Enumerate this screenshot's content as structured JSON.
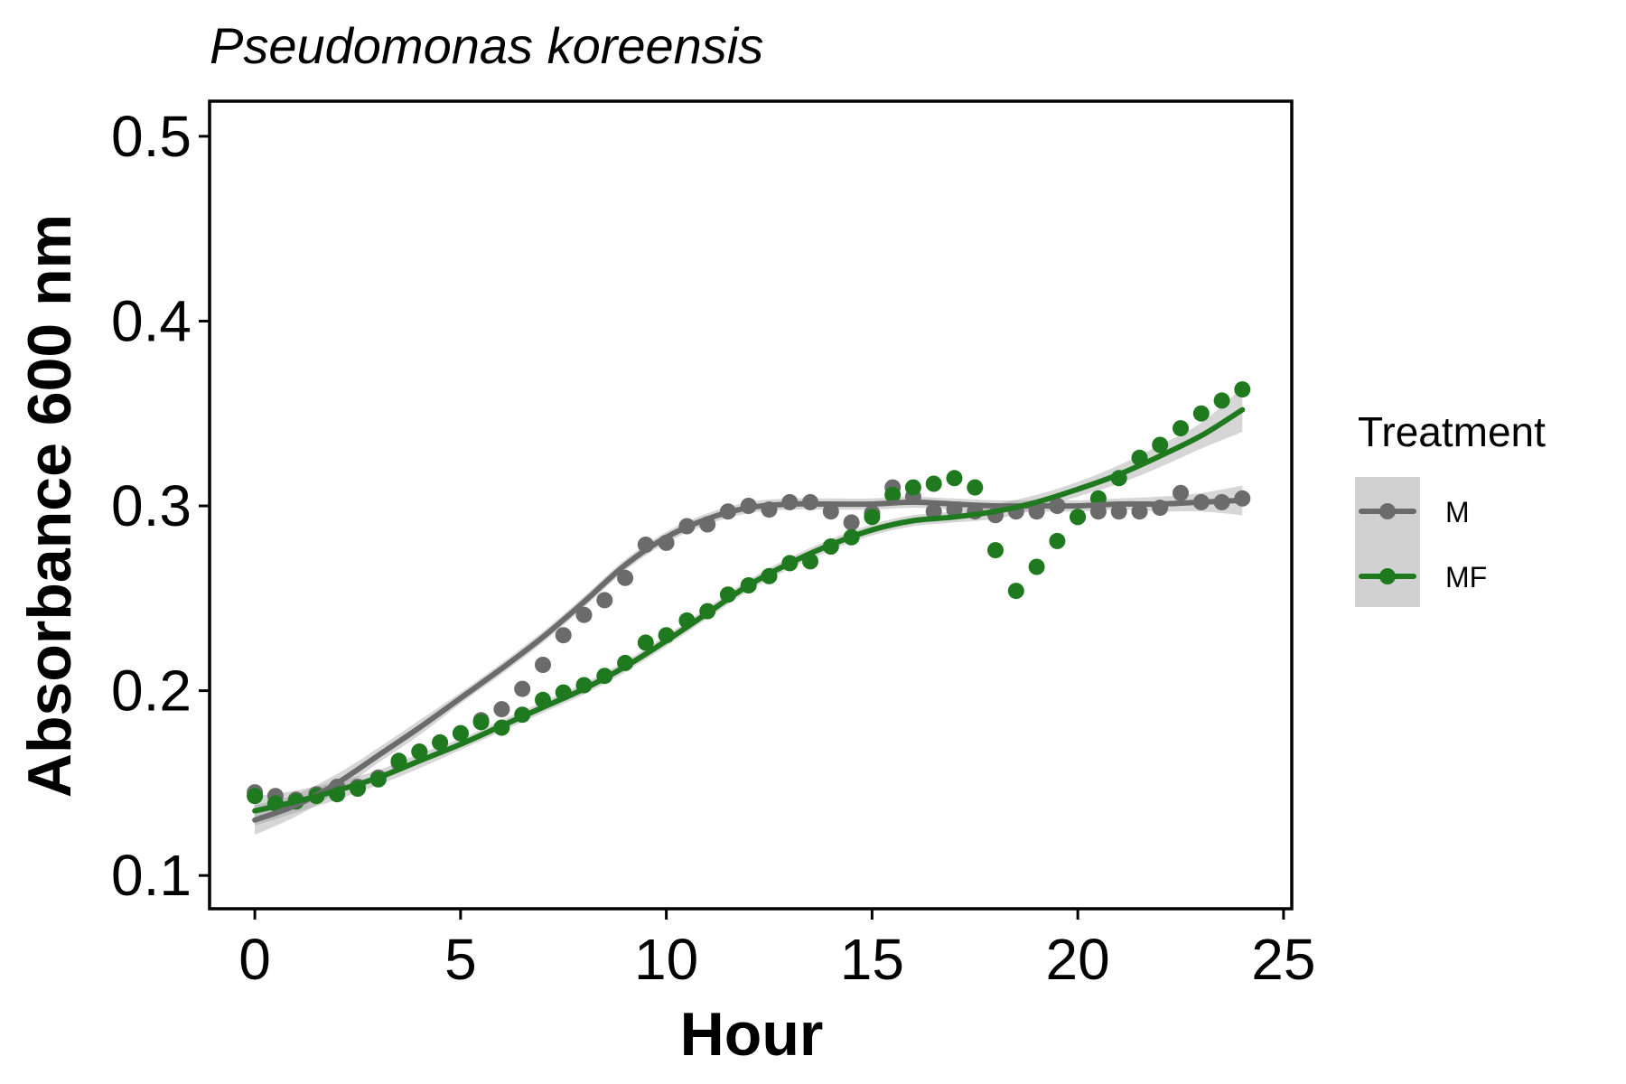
{
  "chart_data": {
    "type": "scatter",
    "title": "Pseudomonas koreensis",
    "xlabel": "Hour",
    "ylabel": "Absorbance 600 nm",
    "xlim": [
      -1.1,
      25.2
    ],
    "ylim": [
      0.082,
      0.519
    ],
    "x_ticks": [
      0,
      5,
      10,
      15,
      20,
      25
    ],
    "x_tick_labels": [
      "0",
      "5",
      "10",
      "15",
      "20",
      "25"
    ],
    "y_ticks": [
      0.1,
      0.2,
      0.3,
      0.4,
      0.5
    ],
    "y_tick_labels": [
      "0.1",
      "0.2",
      "0.3",
      "0.4",
      "0.5"
    ],
    "grid": false,
    "legend": {
      "title": "Treatment",
      "placement": "right"
    },
    "series": [
      {
        "name": "M",
        "color": "#6b6b6b",
        "points": [
          [
            0,
            0.145
          ],
          [
            0.5,
            0.143
          ],
          [
            1,
            0.141
          ],
          [
            1.5,
            0.144
          ],
          [
            2,
            0.148
          ],
          [
            2.5,
            0.148
          ],
          [
            3,
            0.153
          ],
          [
            3.5,
            0.161
          ],
          [
            4,
            0.167
          ],
          [
            4.5,
            0.172
          ],
          [
            5,
            0.177
          ],
          [
            5.5,
            0.184
          ],
          [
            6,
            0.19
          ],
          [
            6.5,
            0.201
          ],
          [
            7,
            0.214
          ],
          [
            7.5,
            0.23
          ],
          [
            8,
            0.241
          ],
          [
            8.5,
            0.249
          ],
          [
            9,
            0.261
          ],
          [
            9.5,
            0.279
          ],
          [
            10,
            0.28
          ],
          [
            10.5,
            0.289
          ],
          [
            11,
            0.29
          ],
          [
            11.5,
            0.297
          ],
          [
            12,
            0.3
          ],
          [
            12.5,
            0.298
          ],
          [
            13,
            0.302
          ],
          [
            13.5,
            0.302
          ],
          [
            14,
            0.297
          ],
          [
            14.5,
            0.291
          ],
          [
            15,
            0.296
          ],
          [
            15.5,
            0.31
          ],
          [
            16,
            0.305
          ],
          [
            16.5,
            0.297
          ],
          [
            17,
            0.298
          ],
          [
            17.5,
            0.297
          ],
          [
            18,
            0.295
          ],
          [
            18.5,
            0.297
          ],
          [
            19,
            0.297
          ],
          [
            19.5,
            0.3
          ],
          [
            20,
            0.294
          ],
          [
            20.5,
            0.297
          ],
          [
            21,
            0.297
          ],
          [
            21.5,
            0.297
          ],
          [
            22,
            0.299
          ],
          [
            22.5,
            0.307
          ],
          [
            23,
            0.302
          ],
          [
            23.5,
            0.302
          ],
          [
            24,
            0.304
          ]
        ],
        "trend": [
          [
            0,
            0.13
          ],
          [
            1,
            0.138
          ],
          [
            2,
            0.15
          ],
          [
            3,
            0.165
          ],
          [
            4,
            0.18
          ],
          [
            5,
            0.196
          ],
          [
            6,
            0.212
          ],
          [
            7,
            0.229
          ],
          [
            8,
            0.248
          ],
          [
            9,
            0.268
          ],
          [
            10,
            0.283
          ],
          [
            11,
            0.293
          ],
          [
            12,
            0.299
          ],
          [
            13,
            0.301
          ],
          [
            14,
            0.301
          ],
          [
            15,
            0.301
          ],
          [
            16,
            0.302
          ],
          [
            17,
            0.301
          ],
          [
            18,
            0.3
          ],
          [
            19,
            0.3
          ],
          [
            20,
            0.3
          ],
          [
            21,
            0.301
          ],
          [
            22,
            0.301
          ],
          [
            23,
            0.302
          ],
          [
            24,
            0.303
          ]
        ],
        "band_halfwidth": [
          0.008,
          0.006,
          0.005,
          0.004,
          0.004,
          0.003,
          0.003,
          0.003,
          0.003,
          0.003,
          0.003,
          0.003,
          0.003,
          0.003,
          0.003,
          0.003,
          0.003,
          0.003,
          0.003,
          0.003,
          0.003,
          0.003,
          0.004,
          0.005,
          0.008
        ]
      },
      {
        "name": "MF",
        "color": "#1f7a1f",
        "points": [
          [
            0,
            0.143
          ],
          [
            0.5,
            0.139
          ],
          [
            1,
            0.14
          ],
          [
            1.5,
            0.143
          ],
          [
            2,
            0.144
          ],
          [
            2.5,
            0.147
          ],
          [
            3,
            0.152
          ],
          [
            3.5,
            0.162
          ],
          [
            4,
            0.167
          ],
          [
            4.5,
            0.172
          ],
          [
            5,
            0.177
          ],
          [
            5.5,
            0.183
          ],
          [
            6,
            0.18
          ],
          [
            6.5,
            0.187
          ],
          [
            7,
            0.195
          ],
          [
            7.5,
            0.199
          ],
          [
            8,
            0.203
          ],
          [
            8.5,
            0.208
          ],
          [
            9,
            0.215
          ],
          [
            9.5,
            0.226
          ],
          [
            10,
            0.23
          ],
          [
            10.5,
            0.238
          ],
          [
            11,
            0.243
          ],
          [
            11.5,
            0.252
          ],
          [
            12,
            0.257
          ],
          [
            12.5,
            0.262
          ],
          [
            13,
            0.269
          ],
          [
            13.5,
            0.27
          ],
          [
            14,
            0.278
          ],
          [
            14.5,
            0.283
          ],
          [
            15,
            0.294
          ],
          [
            15.5,
            0.306
          ],
          [
            16,
            0.31
          ],
          [
            16.5,
            0.312
          ],
          [
            17,
            0.315
          ],
          [
            17.5,
            0.31
          ],
          [
            18,
            0.276
          ],
          [
            18.5,
            0.254
          ],
          [
            19,
            0.267
          ],
          [
            19.5,
            0.281
          ],
          [
            20,
            0.294
          ],
          [
            20.5,
            0.304
          ],
          [
            21,
            0.315
          ],
          [
            21.5,
            0.326
          ],
          [
            22,
            0.333
          ],
          [
            22.5,
            0.342
          ],
          [
            23,
            0.35
          ],
          [
            23.5,
            0.357
          ],
          [
            24,
            0.363
          ]
        ],
        "trend": [
          [
            0,
            0.135
          ],
          [
            1,
            0.14
          ],
          [
            2,
            0.146
          ],
          [
            3,
            0.153
          ],
          [
            4,
            0.162
          ],
          [
            5,
            0.171
          ],
          [
            6,
            0.181
          ],
          [
            7,
            0.191
          ],
          [
            8,
            0.201
          ],
          [
            9,
            0.213
          ],
          [
            10,
            0.227
          ],
          [
            11,
            0.242
          ],
          [
            12,
            0.257
          ],
          [
            13,
            0.269
          ],
          [
            14,
            0.279
          ],
          [
            15,
            0.287
          ],
          [
            16,
            0.292
          ],
          [
            17,
            0.294
          ],
          [
            18,
            0.297
          ],
          [
            19,
            0.302
          ],
          [
            20,
            0.309
          ],
          [
            21,
            0.317
          ],
          [
            22,
            0.327
          ],
          [
            23,
            0.338
          ],
          [
            24,
            0.352
          ]
        ],
        "band_halfwidth": [
          0.008,
          0.006,
          0.005,
          0.004,
          0.004,
          0.003,
          0.003,
          0.003,
          0.003,
          0.003,
          0.003,
          0.003,
          0.003,
          0.003,
          0.003,
          0.003,
          0.003,
          0.003,
          0.004,
          0.004,
          0.004,
          0.005,
          0.006,
          0.007,
          0.012
        ]
      }
    ]
  }
}
